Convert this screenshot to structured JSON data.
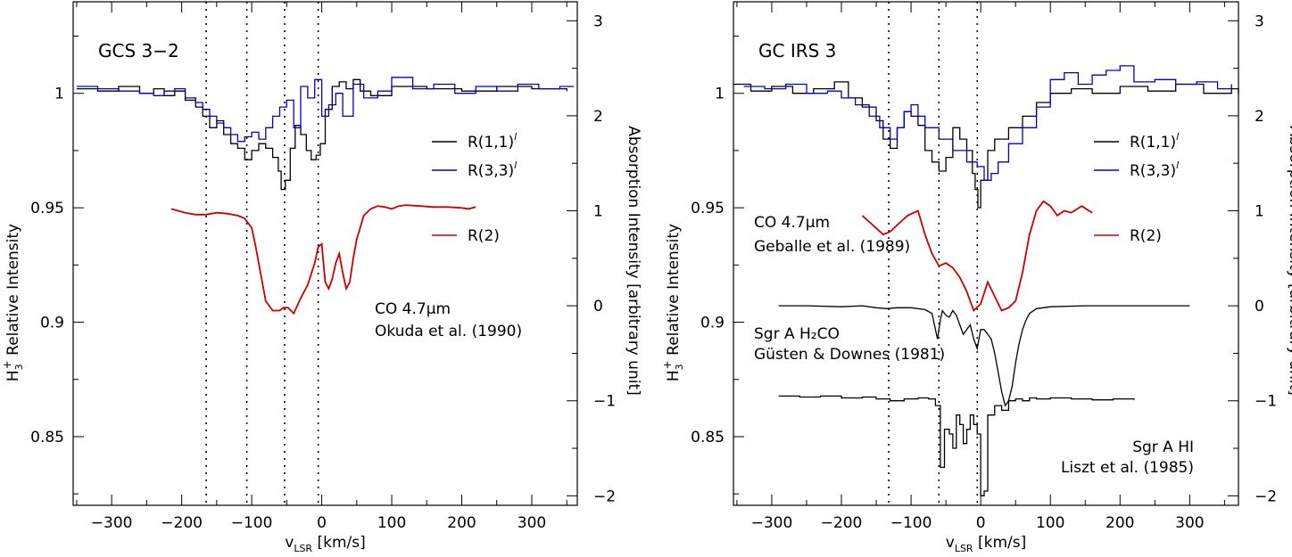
{
  "chart_data": [
    {
      "type": "line",
      "panel_label": "GCS 3−2",
      "xlabel": "v",
      "xlabel_sub": "LSR",
      "xlabel_unit": " [km/s]",
      "ylabel_left": "Relative Intensity",
      "ylabel_left_species": "H",
      "ylabel_left_sub": "3",
      "ylabel_left_sup": "+",
      "ylabel_right": "Absorption Intensity [arbitrary unit]",
      "xlim": [
        -355,
        365
      ],
      "ylim_left": [
        0.82,
        1.04
      ],
      "ylim_right": [
        -2.1,
        3.2
      ],
      "xticks": [
        -300,
        -200,
        -100,
        0,
        100,
        200,
        300
      ],
      "xtick_labels": [
        "−300",
        "−200",
        "−100",
        "0",
        "100",
        "200",
        "300"
      ],
      "yticks_left": [
        0.85,
        0.9,
        0.95,
        1
      ],
      "ytick_labels_left": [
        "0.85",
        "0.9",
        "0.95",
        "1"
      ],
      "yticks_right": [
        -2,
        -1,
        0,
        1,
        2,
        3
      ],
      "ytick_labels_right": [
        "−2",
        "−1",
        "0",
        "1",
        "2",
        "3"
      ],
      "vlines": [
        -165,
        -107,
        -53,
        -5
      ],
      "legend": [
        {
          "label": "R(1,1)",
          "sup": "l",
          "color": "#000000"
        },
        {
          "label": "R(3,3)",
          "sup": "l",
          "color": "#0000cc"
        },
        {
          "label": "R(2)",
          "sup": "",
          "color": "#cc0000"
        }
      ],
      "annotations": [
        {
          "line1": "CO 4.7μm",
          "line2": "Okuda et al. (1990)"
        }
      ],
      "series": [
        {
          "name": "R(1,1)",
          "color": "#000000",
          "axis": "left",
          "step": true,
          "x": [
            -350,
            -320,
            -290,
            -260,
            -240,
            -225,
            -210,
            -195,
            -180,
            -170,
            -160,
            -150,
            -140,
            -130,
            -120,
            -110,
            -100,
            -90,
            -80,
            -70,
            -62,
            -58,
            -52,
            -45,
            -38,
            -30,
            -22,
            -15,
            -8,
            -2,
            5,
            15,
            25,
            35,
            45,
            55,
            70,
            100,
            150,
            200,
            250,
            300,
            350
          ],
          "y": [
            1.002,
            1.001,
            1.003,
            1.0,
            1.002,
            0.999,
            1.001,
            0.997,
            0.994,
            0.99,
            0.985,
            0.988,
            0.982,
            0.978,
            0.976,
            0.971,
            0.975,
            0.978,
            0.976,
            0.972,
            0.966,
            0.958,
            0.962,
            0.976,
            0.986,
            0.982,
            0.975,
            0.971,
            0.973,
            0.978,
            0.993,
            1.003,
            1.005,
            1.002,
            1.006,
            1.001,
            0.999,
            1.003,
            1.002,
            1.001,
            1.003,
            1.002,
            1.001
          ]
        },
        {
          "name": "R(3,3)",
          "color": "#0000cc",
          "axis": "left",
          "step": true,
          "x": [
            -350,
            -320,
            -290,
            -260,
            -240,
            -225,
            -210,
            -195,
            -180,
            -170,
            -160,
            -150,
            -140,
            -130,
            -120,
            -110,
            -100,
            -90,
            -80,
            -70,
            -60,
            -50,
            -40,
            -30,
            -20,
            -10,
            0,
            10,
            20,
            30,
            45,
            60,
            80,
            100,
            130,
            160,
            190,
            220,
            250,
            280,
            310,
            340,
            360
          ],
          "y": [
            1.003,
            1.002,
            1.001,
            1.0,
            0.999,
            1.001,
            1.002,
            0.998,
            0.996,
            0.993,
            0.99,
            0.987,
            0.985,
            0.982,
            0.979,
            0.981,
            0.983,
            0.98,
            0.985,
            0.99,
            0.994,
            0.997,
            0.985,
            1.003,
            0.998,
            1.006,
            0.99,
            0.995,
            1.0,
            0.99,
            1.004,
            0.998,
            1.001,
            1.007,
            1.002,
            1.004,
            1.0,
            1.003,
            1.001,
            1.004,
            1.002,
            1.003,
            1.003
          ]
        },
        {
          "name": "R(2)",
          "color": "#cc0000",
          "axis": "right",
          "step": false,
          "x": [
            -215,
            -195,
            -180,
            -165,
            -150,
            -135,
            -120,
            -110,
            -100,
            -95,
            -90,
            -80,
            -70,
            -60,
            -55,
            -48,
            -40,
            -30,
            -20,
            -10,
            -5,
            0,
            5,
            10,
            15,
            20,
            25,
            30,
            35,
            40,
            45,
            50,
            60,
            70,
            80,
            90,
            100,
            110,
            120,
            140,
            160,
            180,
            200,
            210,
            220
          ],
          "y": [
            1.02,
            0.98,
            0.96,
            0.96,
            0.98,
            0.97,
            0.95,
            0.92,
            0.82,
            0.65,
            0.45,
            0.05,
            -0.05,
            -0.05,
            -0.02,
            -0.02,
            -0.08,
            0.08,
            0.22,
            0.45,
            0.62,
            0.65,
            0.25,
            0.18,
            0.28,
            0.45,
            0.55,
            0.35,
            0.18,
            0.25,
            0.5,
            0.7,
            0.95,
            1.02,
            1.05,
            1.04,
            1.02,
            1.05,
            1.06,
            1.05,
            1.04,
            1.04,
            1.03,
            1.02,
            1.04
          ]
        }
      ]
    },
    {
      "type": "line",
      "panel_label": "GC IRS 3",
      "xlabel": "v",
      "xlabel_sub": "LSR",
      "xlabel_unit": " [km/s]",
      "ylabel_left": "Relative Intensity",
      "ylabel_left_species": "H",
      "ylabel_left_sub": "3",
      "ylabel_left_sup": "+",
      "ylabel_right": "Absorption Intensity [arbitrary unit]",
      "xlim": [
        -355,
        370
      ],
      "ylim_left": [
        0.82,
        1.04
      ],
      "ylim_right": [
        -2.1,
        3.2
      ],
      "xticks": [
        -300,
        -200,
        -100,
        0,
        100,
        200,
        300
      ],
      "xtick_labels": [
        "−300",
        "−200",
        "−100",
        "0",
        "100",
        "200",
        "300"
      ],
      "yticks_left": [
        0.85,
        0.9,
        0.95,
        1
      ],
      "ytick_labels_left": [
        "0.85",
        "0.9",
        "0.95",
        "1"
      ],
      "yticks_right": [
        -2,
        -1,
        0,
        1,
        2,
        3
      ],
      "ytick_labels_right": [
        "−2",
        "−1",
        "0",
        "1",
        "2",
        "3"
      ],
      "vlines": [
        -132,
        -60,
        -5
      ],
      "legend": [
        {
          "label": "R(1,1)",
          "sup": "l",
          "color": "#000000"
        },
        {
          "label": "R(3,3)",
          "sup": "l",
          "color": "#0000cc"
        },
        {
          "label": "R(2)",
          "sup": "",
          "color": "#cc0000"
        }
      ],
      "annotations": [
        {
          "line1": "CO 4.7μm",
          "line2": "Geballe et al. (1989)"
        },
        {
          "line1": "Sgr A H₂CO",
          "line2": "Güsten & Downes (1981)"
        },
        {
          "line1": "Sgr A HI",
          "line2": "Liszt et al. (1985)"
        }
      ],
      "series": [
        {
          "name": "R(1,1)",
          "color": "#000000",
          "axis": "left",
          "step": true,
          "x": [
            -355,
            -330,
            -300,
            -270,
            -240,
            -210,
            -190,
            -170,
            -150,
            -140,
            -130,
            -120,
            -110,
            -100,
            -90,
            -80,
            -70,
            -60,
            -50,
            -40,
            -30,
            -20,
            -12,
            -8,
            -4,
            0,
            10,
            20,
            40,
            60,
            80,
            100,
            130,
            160,
            200,
            240,
            280,
            320,
            360,
            370
          ],
          "y": [
            1.004,
            1.001,
            1.003,
            1.0,
            1.002,
            1.005,
            0.998,
            0.994,
            0.988,
            0.98,
            0.976,
            0.985,
            0.992,
            0.99,
            0.986,
            0.975,
            0.97,
            0.966,
            0.972,
            0.985,
            0.98,
            0.975,
            0.965,
            0.958,
            0.95,
            0.962,
            0.975,
            0.98,
            0.985,
            0.99,
            0.996,
            1.0,
            1.002,
            1.0,
            1.003,
            1.001,
            1.004,
            1.0,
            1.002,
            1.0
          ]
        },
        {
          "name": "R(3,3)",
          "color": "#0000cc",
          "axis": "left",
          "step": true,
          "x": [
            -340,
            -310,
            -280,
            -250,
            -220,
            -200,
            -180,
            -160,
            -145,
            -130,
            -120,
            -110,
            -100,
            -90,
            -80,
            -60,
            -40,
            -20,
            -5,
            5,
            15,
            25,
            40,
            60,
            80,
            100,
            120,
            140,
            160,
            180,
            200,
            220,
            250,
            280,
            310,
            340,
            360
          ],
          "y": [
            1.003,
            1.002,
            1.004,
            1.0,
            1.001,
            0.998,
            0.995,
            0.99,
            0.985,
            0.98,
            0.985,
            0.992,
            0.995,
            0.99,
            0.985,
            0.98,
            0.975,
            0.97,
            0.968,
            0.962,
            0.965,
            0.97,
            0.978,
            0.985,
            0.994,
            1.006,
            1.009,
            1.004,
            1.008,
            1.01,
            1.012,
            1.005,
            1.006,
            1.004,
            1.005,
            1.002,
            1.004
          ]
        },
        {
          "name": "R(2)",
          "color": "#cc0000",
          "axis": "right",
          "step": false,
          "x": [
            -170,
            -155,
            -140,
            -130,
            -120,
            -105,
            -90,
            -80,
            -70,
            -60,
            -50,
            -40,
            -30,
            -20,
            -10,
            0,
            10,
            20,
            30,
            40,
            50,
            60,
            70,
            80,
            90,
            100,
            110,
            120,
            130,
            145,
            160
          ],
          "y": [
            0.95,
            0.85,
            0.75,
            0.78,
            0.85,
            0.95,
            1.0,
            0.75,
            0.55,
            0.42,
            0.45,
            0.4,
            0.3,
            0.15,
            -0.05,
            0.02,
            0.25,
            0.1,
            -0.05,
            -0.02,
            0.05,
            0.35,
            0.75,
            1.0,
            1.1,
            1.05,
            0.95,
            1.0,
            0.98,
            1.05,
            0.98
          ]
        },
        {
          "name": "Sgr A H₂CO",
          "color": "#000000",
          "axis": "right",
          "step": false,
          "x": [
            -290,
            -250,
            -200,
            -170,
            -150,
            -135,
            -120,
            -100,
            -80,
            -70,
            -62,
            -58,
            -55,
            -50,
            -45,
            -40,
            -35,
            -30,
            -25,
            -20,
            -15,
            -10,
            -5,
            0,
            5,
            10,
            15,
            20,
            25,
            30,
            35,
            40,
            45,
            50,
            55,
            60,
            65,
            70,
            80,
            90,
            100,
            150,
            200,
            250,
            300
          ],
          "y": [
            0.0,
            0.0,
            -0.01,
            0.0,
            -0.02,
            -0.03,
            -0.02,
            -0.02,
            -0.04,
            -0.08,
            -0.35,
            -0.15,
            -0.05,
            -0.1,
            -0.12,
            -0.05,
            -0.1,
            -0.2,
            -0.3,
            -0.25,
            -0.2,
            -0.35,
            -0.45,
            -0.25,
            -0.25,
            -0.3,
            -0.35,
            -0.5,
            -0.7,
            -0.9,
            -1.05,
            -1.0,
            -0.85,
            -0.6,
            -0.4,
            -0.25,
            -0.15,
            -0.08,
            -0.03,
            -0.02,
            -0.01,
            0.0,
            0.0,
            0.0,
            0.0
          ]
        },
        {
          "name": "Sgr A HI",
          "color": "#000000",
          "axis": "right",
          "step": true,
          "x": [
            -290,
            -260,
            -230,
            -200,
            -170,
            -150,
            -130,
            -110,
            -90,
            -75,
            -65,
            -58,
            -52,
            -45,
            -40,
            -35,
            -30,
            -25,
            -20,
            -15,
            -10,
            -5,
            0,
            5,
            10,
            20,
            30,
            40,
            50,
            60,
            70,
            80,
            100,
            130,
            160,
            190,
            220
          ],
          "y": [
            -0.95,
            -0.96,
            -0.95,
            -0.97,
            -0.96,
            -0.98,
            -1.0,
            -0.98,
            -0.97,
            -0.98,
            -1.05,
            -1.7,
            -1.3,
            -1.35,
            -1.5,
            -1.15,
            -1.25,
            -1.45,
            -1.3,
            -1.15,
            -1.25,
            -1.35,
            -2.0,
            -1.95,
            -1.15,
            -1.05,
            -1.1,
            -1.0,
            -0.98,
            -1.0,
            -0.97,
            -0.98,
            -0.97,
            -0.98,
            -0.99,
            -0.98,
            -0.99
          ]
        }
      ]
    }
  ]
}
